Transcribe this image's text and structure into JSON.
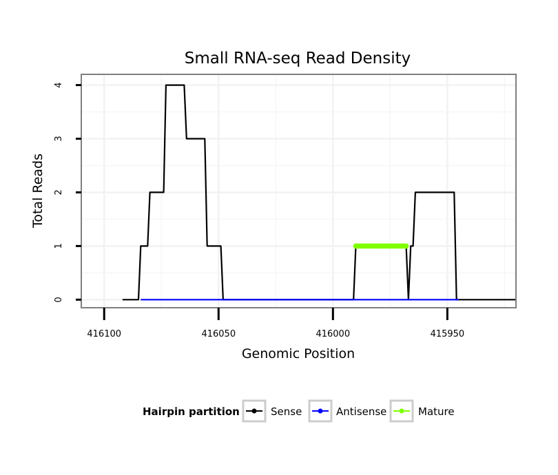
{
  "chart_data": {
    "type": "line",
    "title": "Small RNA-seq Read Density",
    "xlabel": "Genomic Position",
    "ylabel": "Total Reads",
    "x_reversed": true,
    "xlim": [
      416110,
      415920
    ],
    "ylim": [
      -0.15,
      4.2
    ],
    "x_ticks": [
      416100,
      416050,
      416000,
      415950
    ],
    "x_tick_labels": [
      "416100",
      "416050",
      "416000",
      "415950"
    ],
    "y_ticks": [
      0,
      1,
      2,
      3,
      4
    ],
    "y_tick_labels": [
      "0",
      "1",
      "2",
      "3",
      "4"
    ],
    "grid": true,
    "legend": {
      "title": "Hairpin partition",
      "position": "bottom",
      "entries": [
        "Sense",
        "Antisense",
        "Mature"
      ]
    },
    "series": [
      {
        "name": "Sense",
        "color": "#000000",
        "x": [
          416092,
          416085,
          416084,
          416081,
          416080,
          416074,
          416073,
          416065,
          416064,
          416057,
          416056,
          416055,
          416049,
          416048,
          416000,
          415991,
          415990,
          415968,
          415967,
          415966,
          415965,
          415964,
          415947,
          415946,
          415945,
          415941,
          415920
        ],
        "y": [
          0,
          0,
          1,
          1,
          2,
          2,
          4,
          4,
          3,
          3,
          3,
          1,
          1,
          0,
          0,
          0,
          1,
          1,
          0,
          1,
          1,
          2,
          2,
          0,
          0,
          0,
          0
        ]
      },
      {
        "name": "Antisense",
        "color": "#0000ff",
        "x": [
          416084,
          416048,
          415990,
          415966,
          415945
        ],
        "y": [
          0,
          0,
          0,
          0,
          0
        ]
      },
      {
        "name": "Mature",
        "color": "#7fff00",
        "x": [
          415990,
          415968
        ],
        "y": [
          1,
          1
        ]
      }
    ]
  }
}
